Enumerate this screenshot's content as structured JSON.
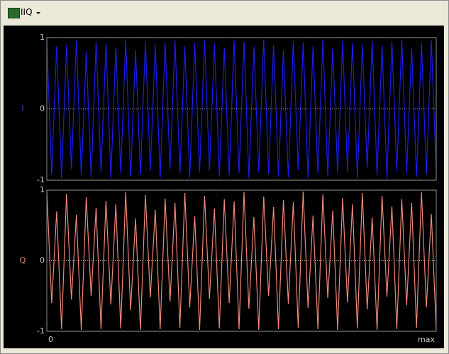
{
  "toolbar": {
    "label": "IIQ"
  },
  "chart_data": [
    {
      "type": "line",
      "y_label": "I",
      "color": "#1c1cf0",
      "label_color": "#3848d8",
      "xlim": [
        0,
        79
      ],
      "ylim": [
        -1,
        1
      ],
      "yticks": [
        -1,
        0,
        1
      ],
      "grid": true,
      "values": [
        0.96,
        -0.92,
        0.88,
        -0.97,
        0.9,
        -0.85,
        0.97,
        -0.93,
        0.8,
        -0.96,
        0.94,
        -0.88,
        0.92,
        -0.97,
        0.86,
        -0.9,
        0.97,
        -0.95,
        0.83,
        -0.92,
        0.95,
        -0.87,
        0.9,
        -0.97,
        0.93,
        -0.84,
        0.96,
        -0.91,
        0.88,
        -0.96,
        0.92,
        -0.89,
        0.97,
        -0.86,
        0.91,
        -0.95,
        0.85,
        -0.93,
        0.96,
        -0.9,
        0.94,
        -0.97,
        0.87,
        -0.88,
        0.97,
        -0.92,
        0.9,
        -0.95,
        0.82,
        -0.96,
        0.95,
        -0.86,
        0.93,
        -0.97,
        0.88,
        -0.91,
        0.97,
        -0.94,
        0.85,
        -0.9,
        0.96,
        -0.88,
        0.92,
        -0.97,
        0.9,
        -0.83,
        0.95,
        -0.93,
        0.89,
        -0.97,
        0.94,
        -0.87,
        0.97,
        -0.9,
        0.86,
        -0.95,
        0.93,
        -0.92,
        0.96,
        -0.89
      ]
    },
    {
      "type": "line",
      "y_label": "Q",
      "color": "#f08878",
      "label_color": "#f08878",
      "xlim": [
        0,
        79
      ],
      "ylim": [
        -1,
        1
      ],
      "yticks": [
        -1,
        0,
        1
      ],
      "grid": true,
      "xticks": [
        0,
        {
          "value": 79,
          "label": "max"
        }
      ],
      "values": [
        0.98,
        -0.6,
        0.7,
        -0.97,
        0.95,
        -0.55,
        0.65,
        -0.98,
        0.9,
        -0.5,
        0.75,
        -0.97,
        0.85,
        -0.62,
        0.8,
        -0.96,
        0.97,
        -0.7,
        0.6,
        -0.98,
        0.93,
        -0.52,
        0.72,
        -0.97,
        0.88,
        -0.58,
        0.82,
        -0.95,
        0.96,
        -0.66,
        0.63,
        -0.98,
        0.92,
        -0.54,
        0.74,
        -0.96,
        0.87,
        -0.6,
        0.84,
        -0.97,
        0.97,
        -0.68,
        0.62,
        -0.98,
        0.91,
        -0.5,
        0.76,
        -0.97,
        0.86,
        -0.61,
        0.83,
        -0.95,
        0.98,
        -0.67,
        0.64,
        -0.97,
        0.94,
        -0.53,
        0.71,
        -0.98,
        0.89,
        -0.59,
        0.8,
        -0.96,
        0.96,
        -0.69,
        0.61,
        -0.98,
        0.92,
        -0.51,
        0.77,
        -0.97,
        0.87,
        -0.63,
        0.82,
        -0.95,
        0.97,
        -0.66,
        0.66,
        -0.98
      ]
    }
  ]
}
